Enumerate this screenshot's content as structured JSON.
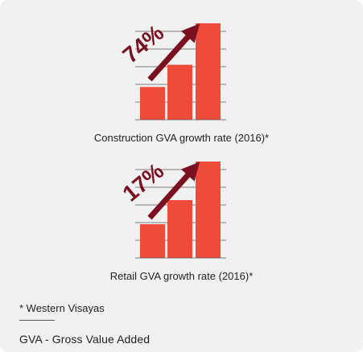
{
  "colors": {
    "bar": "#ef4b3b",
    "arrow": "#7b1020",
    "percent": "#7b1020",
    "panel": "#f1f1f1",
    "grid": "#555555"
  },
  "chart_data": [
    {
      "type": "bar",
      "categories": [
        "",
        "",
        ""
      ],
      "values": [
        34,
        57,
        100
      ],
      "ylim": [
        0,
        100
      ],
      "grid": true,
      "callout": "74%",
      "caption": "Construction GVA growth rate (2016)*"
    },
    {
      "type": "bar",
      "categories": [
        "",
        "",
        ""
      ],
      "values": [
        35,
        60,
        100
      ],
      "ylim": [
        0,
        100
      ],
      "grid": true,
      "callout": "17%",
      "caption": "Retail GVA growth rate (2016)*"
    }
  ],
  "notes": {
    "region": "* Western Visayas",
    "gva": "GVA - Gross Value Added"
  }
}
